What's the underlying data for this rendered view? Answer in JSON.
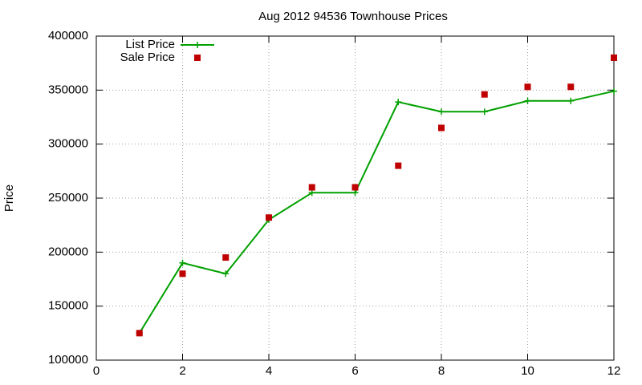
{
  "chart_data": {
    "type": "line",
    "title": "Aug 2012 94536 Townhouse Prices",
    "y_label": "Price",
    "x": [
      1,
      2,
      3,
      4,
      5,
      6,
      7,
      8,
      9,
      10,
      11,
      12
    ],
    "series": [
      {
        "name": "List Price",
        "color": "#00a000",
        "mode": "linespoints",
        "values": [
          125000,
          190000,
          180000,
          230000,
          255000,
          255000,
          339000,
          330000,
          330000,
          340000,
          340000,
          349000
        ]
      },
      {
        "name": "Sale Price",
        "color": "#c00000",
        "mode": "points",
        "values": [
          125000,
          180000,
          195000,
          232000,
          260000,
          260000,
          280000,
          315000,
          346000,
          353000,
          353000,
          380000
        ]
      }
    ],
    "xlim": [
      0,
      12
    ],
    "xticks": [
      0,
      2,
      4,
      6,
      8,
      10,
      12
    ],
    "ylim": [
      100000,
      400000
    ],
    "yticks": [
      100000,
      150000,
      200000,
      250000,
      300000,
      350000,
      400000
    ],
    "grid": true,
    "legend": "top-left"
  }
}
